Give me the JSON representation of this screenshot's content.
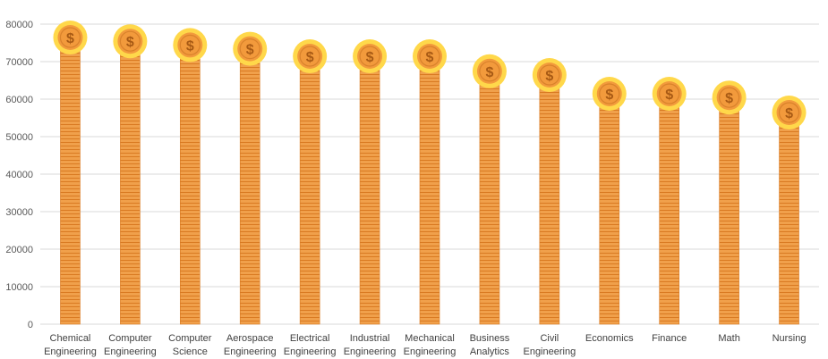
{
  "chart_data": {
    "type": "bar",
    "categories": [
      [
        "Chemical",
        "Engineering"
      ],
      [
        "Computer",
        "Engineering"
      ],
      [
        "Computer",
        "Science"
      ],
      [
        "Aerospace",
        "Engineering"
      ],
      [
        "Electrical",
        "Engineering"
      ],
      [
        "Industrial",
        "Engineering"
      ],
      [
        "Mechanical",
        "Engineering"
      ],
      [
        "Business",
        "Analytics"
      ],
      [
        "Civil",
        "Engineering"
      ],
      [
        "Economics"
      ],
      [
        "Finance"
      ],
      [
        "Math"
      ],
      [
        "Nursing"
      ]
    ],
    "values": [
      75000,
      74000,
      73000,
      72000,
      70000,
      70000,
      70000,
      66000,
      65000,
      60000,
      60000,
      59000,
      55000
    ],
    "ylim": [
      0,
      80000
    ],
    "yticks": [
      0,
      10000,
      20000,
      30000,
      40000,
      50000,
      60000,
      70000,
      80000
    ],
    "grid": true,
    "title": "",
    "xlabel": "",
    "ylabel": "",
    "marker_icon": "dollar-coin-icon",
    "marker_symbol": "$",
    "colors": {
      "bar": "#f0a04b",
      "bar_line": "#d97a22",
      "coin_ring": "#ffd84a",
      "coin_face": "#f29a3c",
      "coin_inner": "#d9822b",
      "grid": "#d9d9d9"
    }
  }
}
